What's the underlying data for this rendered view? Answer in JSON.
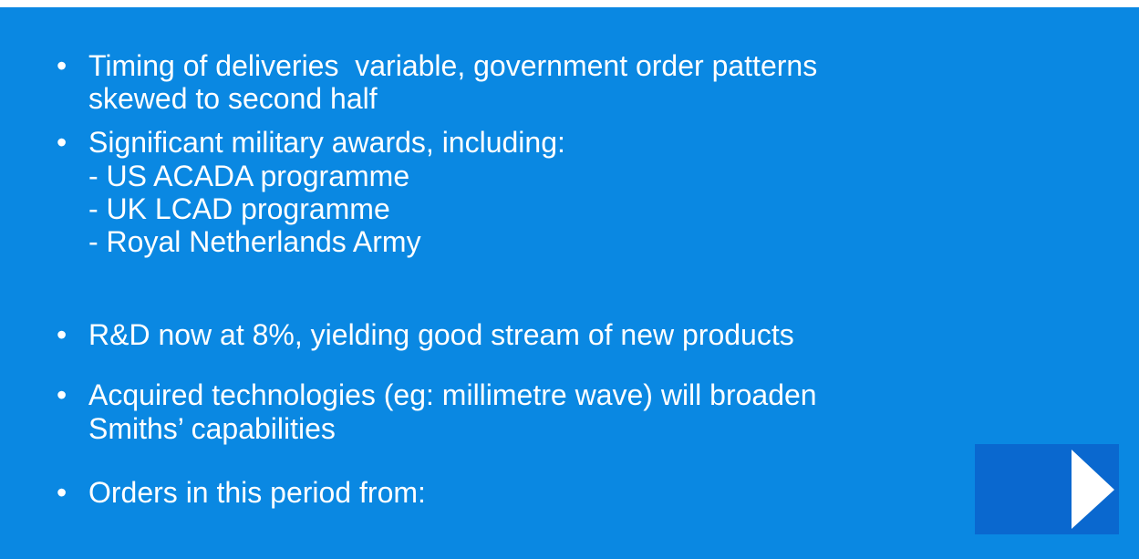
{
  "bullets": [
    {
      "lines": [
        "Timing of deliveries  variable, government order patterns",
        "skewed to second half"
      ]
    },
    {
      "lines": [
        "Significant military awards, including:",
        "- US ACADA programme",
        "- UK LCAD programme",
        "- Royal Netherlands Army"
      ]
    },
    {
      "lines": [
        "R&D now at 8%, yielding good stream of new products"
      ]
    },
    {
      "lines": [
        "Acquired technologies (eg: millimetre wave) will broaden",
        "Smiths’ capabilities"
      ]
    },
    {
      "lines": [
        "Orders in this period from:"
      ]
    }
  ]
}
